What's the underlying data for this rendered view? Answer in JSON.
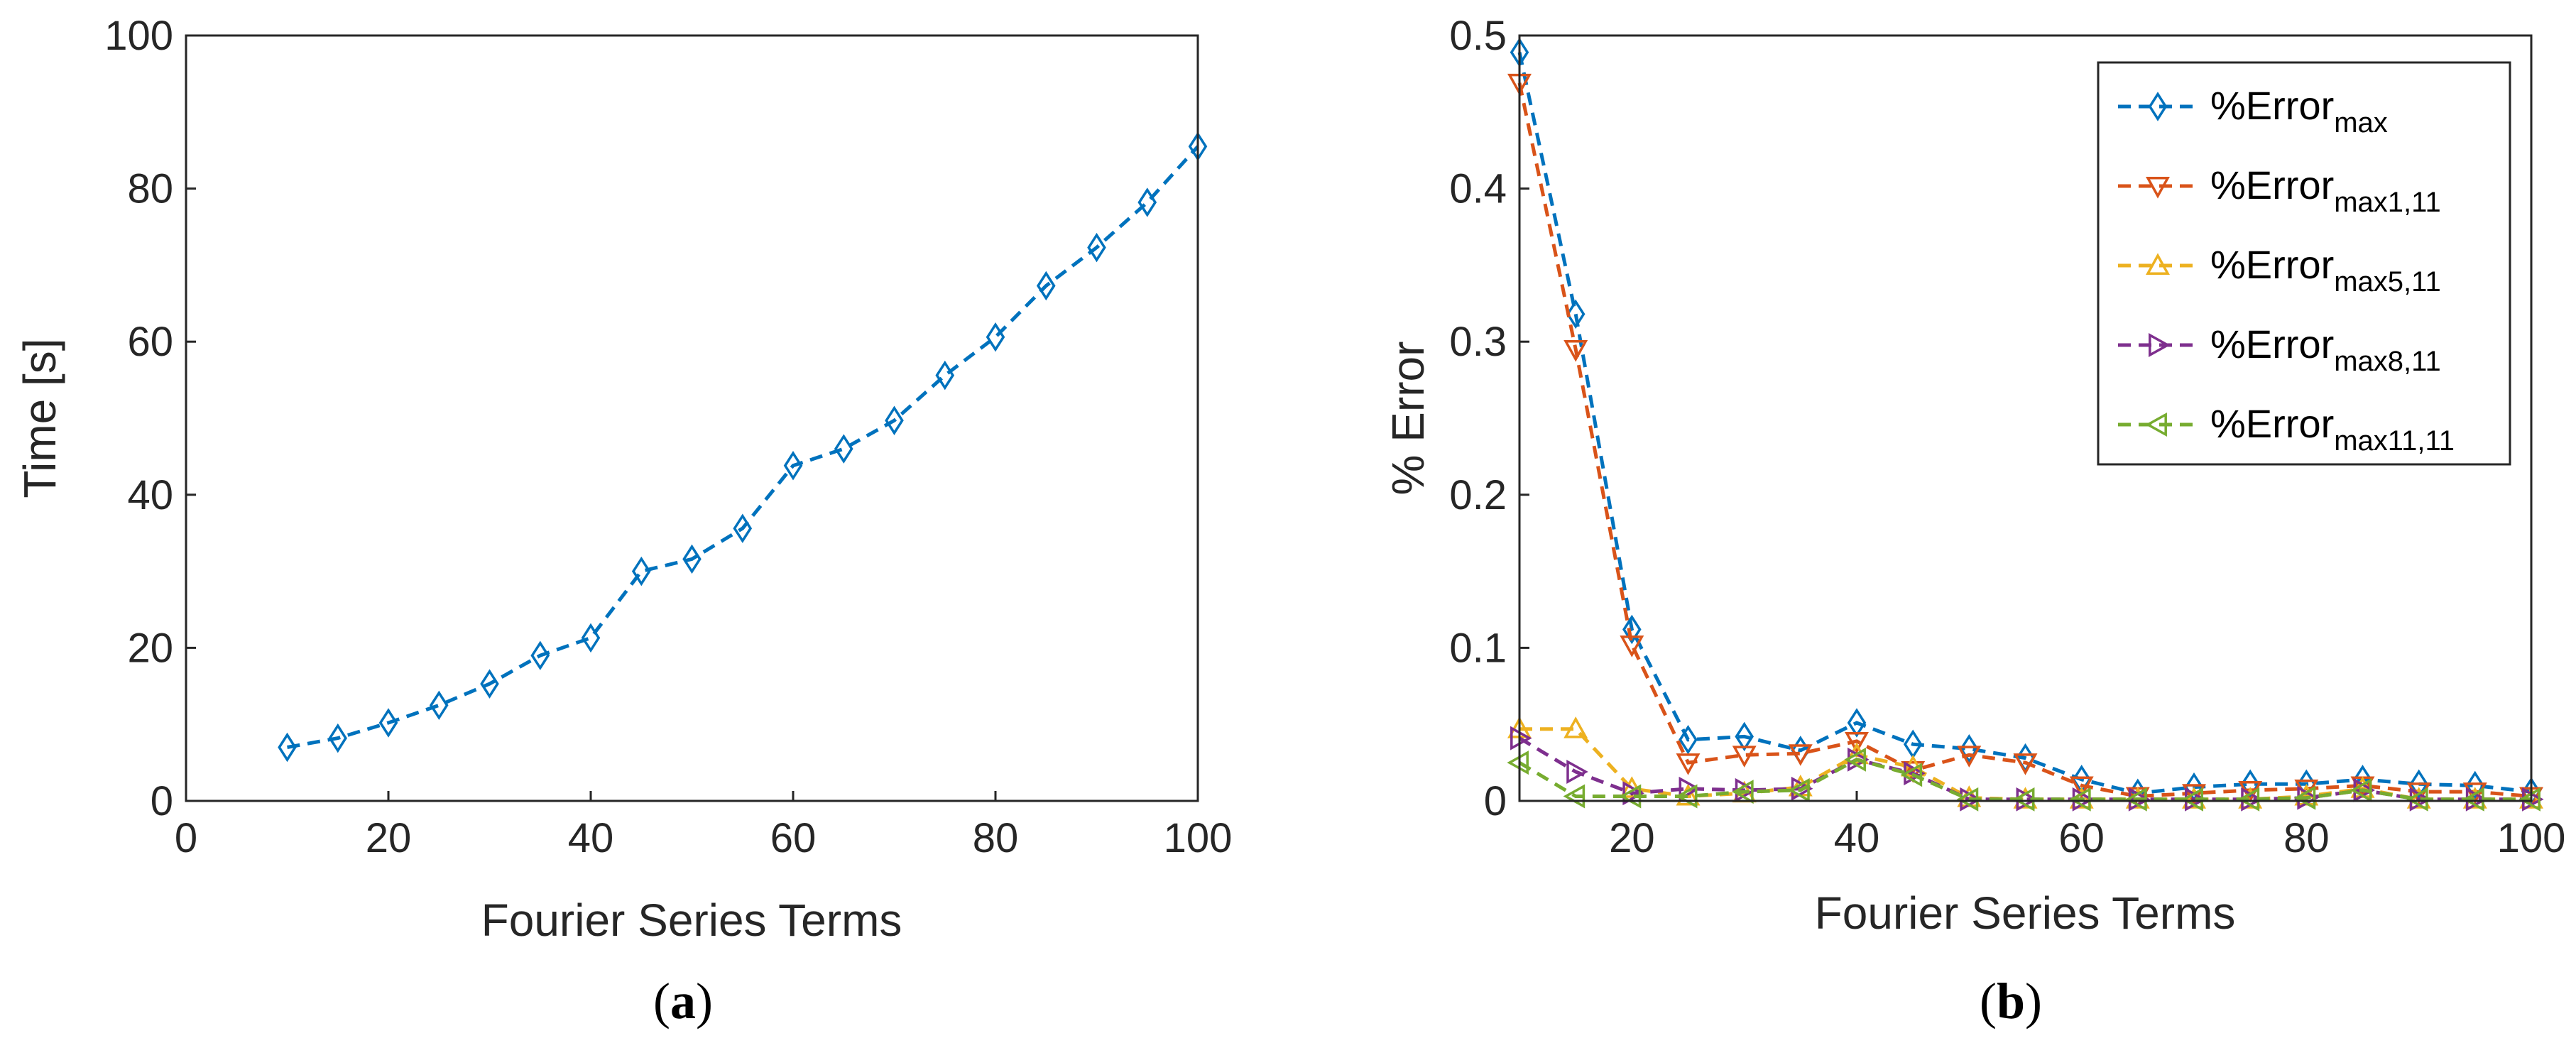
{
  "chart_data": [
    {
      "type": "line",
      "caption": "(a)",
      "caption_letter": "a",
      "xlabel": "Fourier Series Terms",
      "ylabel": "Time [s]",
      "xlim": [
        0,
        100
      ],
      "ylim": [
        0,
        100
      ],
      "xticks": [
        0,
        20,
        40,
        60,
        80,
        100
      ],
      "yticks": [
        0,
        20,
        40,
        60,
        80,
        100
      ],
      "series": [
        {
          "name": "Time",
          "color": "#0072BD",
          "marker": "diamond",
          "x": [
            10,
            15,
            20,
            25,
            30,
            35,
            40,
            45,
            50,
            55,
            60,
            65,
            70,
            75,
            80,
            85,
            90,
            95,
            100
          ],
          "values": [
            7,
            8.2,
            10.2,
            12.5,
            15.3,
            19,
            21.3,
            30,
            31.6,
            35.6,
            43.8,
            46,
            49.7,
            55.6,
            60.6,
            67.3,
            72.3,
            78.2,
            85.5
          ]
        }
      ]
    },
    {
      "type": "line",
      "caption": "(b)",
      "caption_letter": "b",
      "xlabel": "Fourier Series Terms",
      "ylabel": "% Error",
      "xlim": [
        10,
        100
      ],
      "ylim": [
        0,
        0.5
      ],
      "xticks": [
        20,
        40,
        60,
        80,
        100
      ],
      "yticks": [
        0,
        0.1,
        0.2,
        0.3,
        0.4,
        0.5
      ],
      "ytick_labels": [
        "0",
        "0.1",
        "0.2",
        "0.3",
        "0.4",
        "0.5"
      ],
      "legend_position": "top-right",
      "series": [
        {
          "name": "%Error",
          "subscript": "max",
          "color": "#0072BD",
          "marker": "diamond",
          "x": [
            10,
            15,
            20,
            25,
            30,
            35,
            40,
            45,
            50,
            55,
            60,
            65,
            70,
            75,
            80,
            85,
            90,
            95,
            100
          ],
          "values": [
            0.489,
            0.318,
            0.112,
            0.04,
            0.042,
            0.033,
            0.051,
            0.037,
            0.034,
            0.028,
            0.014,
            0.005,
            0.009,
            0.011,
            0.011,
            0.014,
            0.011,
            0.01,
            0.006
          ]
        },
        {
          "name": "%Error",
          "subscript": "max1,11",
          "color": "#D95319",
          "marker": "triangle-down",
          "x": [
            10,
            15,
            20,
            25,
            30,
            35,
            40,
            45,
            50,
            55,
            60,
            65,
            70,
            75,
            80,
            85,
            90,
            95,
            100
          ],
          "values": [
            0.469,
            0.295,
            0.102,
            0.025,
            0.03,
            0.031,
            0.039,
            0.02,
            0.03,
            0.025,
            0.01,
            0.003,
            0.005,
            0.007,
            0.008,
            0.01,
            0.006,
            0.006,
            0.003
          ]
        },
        {
          "name": "%Error",
          "subscript": "max5,11",
          "color": "#EDB120",
          "marker": "triangle-up",
          "x": [
            10,
            15,
            20,
            25,
            30,
            35,
            40,
            45,
            50,
            55,
            60,
            65,
            70,
            75,
            80,
            85,
            90,
            95,
            100
          ],
          "values": [
            0.047,
            0.047,
            0.008,
            0.003,
            0.005,
            0.009,
            0.03,
            0.022,
            0.002,
            0.001,
            0.001,
            0.001,
            0.001,
            0.001,
            0.003,
            0.008,
            0.001,
            0.001,
            0.001
          ]
        },
        {
          "name": "%Error",
          "subscript": "max8,11",
          "color": "#7E2F8E",
          "marker": "triangle-right",
          "x": [
            10,
            15,
            20,
            25,
            30,
            35,
            40,
            45,
            50,
            55,
            60,
            65,
            70,
            75,
            80,
            85,
            90,
            95,
            100
          ],
          "values": [
            0.041,
            0.019,
            0.005,
            0.008,
            0.007,
            0.008,
            0.027,
            0.018,
            0.001,
            0.001,
            0.001,
            0.001,
            0.001,
            0.001,
            0.002,
            0.007,
            0.001,
            0.001,
            0.001
          ]
        },
        {
          "name": "%Error",
          "subscript": "max11,11",
          "color": "#77AC30",
          "marker": "triangle-left",
          "x": [
            10,
            15,
            20,
            25,
            30,
            35,
            40,
            45,
            50,
            55,
            60,
            65,
            70,
            75,
            80,
            85,
            90,
            95,
            100
          ],
          "values": [
            0.025,
            0.003,
            0.003,
            0.003,
            0.006,
            0.007,
            0.027,
            0.017,
            0.001,
            0.001,
            0.001,
            0.001,
            0.001,
            0.001,
            0.002,
            0.007,
            0.001,
            0.001,
            0.001
          ]
        }
      ]
    }
  ]
}
